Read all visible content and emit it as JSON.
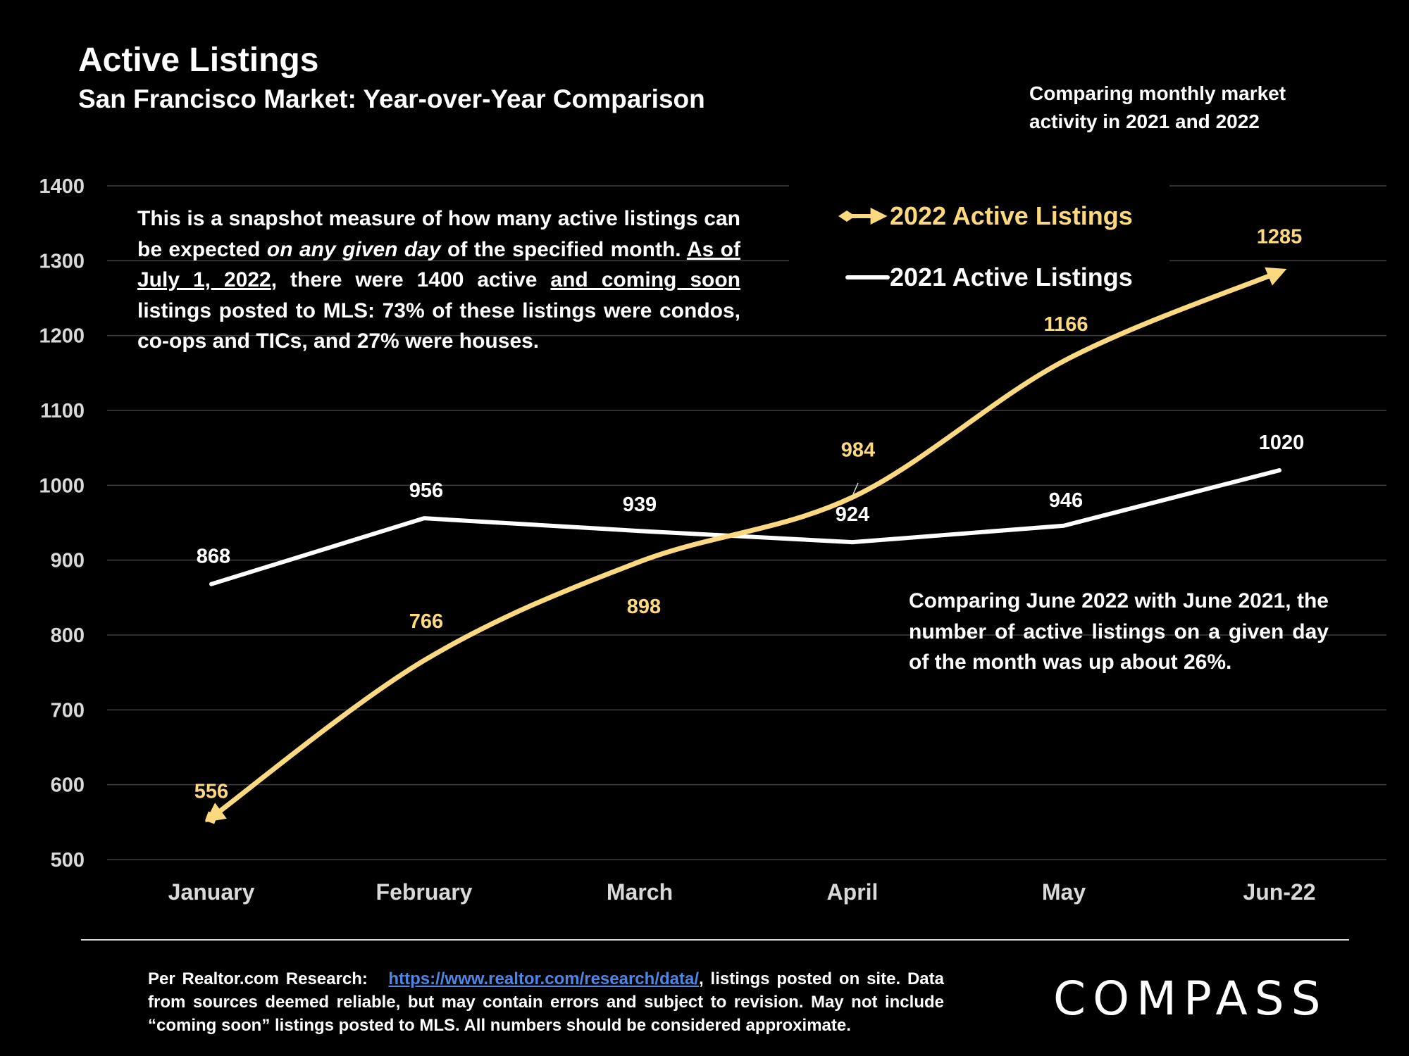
{
  "header": {
    "title": "Active Listings",
    "subtitle": "San Francisco Market: Year-over-Year Comparison",
    "side_note": "Comparing monthly market activity in 2021 and 2022"
  },
  "annotations": {
    "left_parts": [
      {
        "text": "This is a snapshot measure of how many active listings can be expected ",
        "style": "normal"
      },
      {
        "text": "on any given day",
        "style": "italic"
      },
      {
        "text": " of the specified month. ",
        "style": "normal"
      },
      {
        "text": "As of July 1, 2022",
        "style": "underline"
      },
      {
        "text": ", there were 1400 active ",
        "style": "normal"
      },
      {
        "text": "and coming soon",
        "style": "underline"
      },
      {
        "text": " listings posted to MLS: 73% of these listings were condos, co-ops and TICs, and 27% were houses.",
        "style": "normal"
      }
    ],
    "right": "Comparing June 2022 with June 2021, the number of active listings on a given day of the month was up about 26%."
  },
  "chart_data": {
    "type": "line",
    "categories": [
      "January",
      "February",
      "March",
      "April",
      "May",
      "Jun-22"
    ],
    "ylim": [
      500,
      1400
    ],
    "yticks": [
      500,
      600,
      700,
      800,
      900,
      1000,
      1100,
      1200,
      1300,
      1400
    ],
    "grid": true,
    "legend_position": "top-right",
    "series": [
      {
        "name": "2022 Active Listings",
        "values": [
          556,
          766,
          898,
          984,
          1166,
          1285
        ],
        "color": "#fcd97f",
        "smooth": true,
        "arrow_end": true,
        "diamond_start": true
      },
      {
        "name": "2021 Active Listings",
        "values": [
          868,
          956,
          939,
          924,
          946,
          1020
        ],
        "color": "#ffffff",
        "smooth": false
      }
    ]
  },
  "footer": {
    "source_prefix": "Per Realtor.com Research:",
    "source_link": "https://www.realtor.com/research/data/",
    "source_suffix": ", listings posted on site. Data from sources deemed reliable, but may contain errors and subject to revision. May not include “coming soon” listings posted to MLS. All numbers should be considered approximate.",
    "logo": "COMPASS"
  }
}
